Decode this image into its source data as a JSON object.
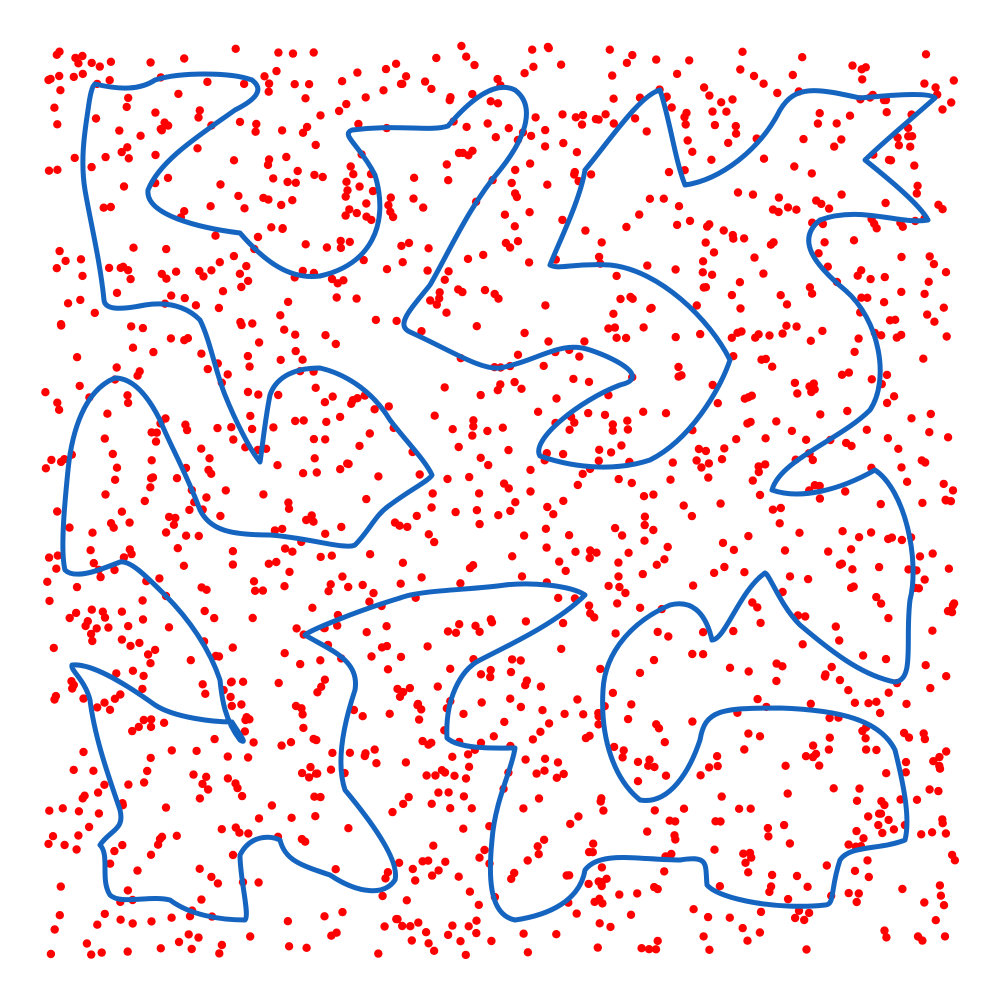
{
  "figure": {
    "description_name": "scattered-points-with-closed-curves",
    "background_color": "#ffffff",
    "curve_color": "#1565c0",
    "point_color": "#ff0000",
    "curve_count": 11,
    "point_count": 1500,
    "point_seed": 20240517
  }
}
